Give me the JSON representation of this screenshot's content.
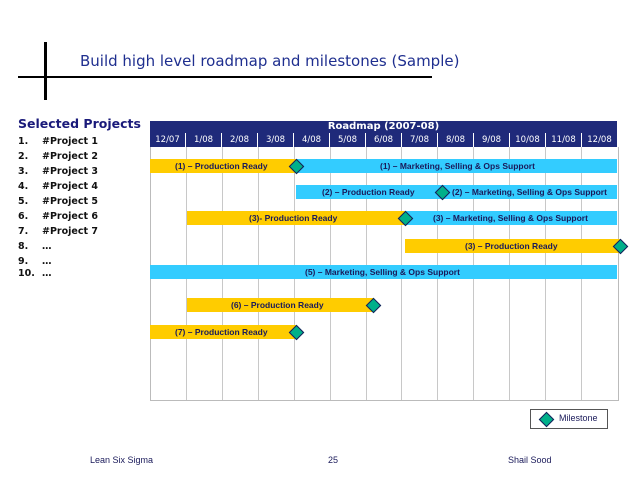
{
  "slide": {
    "title": "Build high level roadmap and milestones (Sample)"
  },
  "projects": {
    "heading": "Selected Projects",
    "items": [
      {
        "num": "1.",
        "name": "#Project 1"
      },
      {
        "num": "2.",
        "name": "#Project 2"
      },
      {
        "num": "3.",
        "name": "#Project 3"
      },
      {
        "num": "4.",
        "name": "#Project 4"
      },
      {
        "num": "5.",
        "name": "#Project 5"
      },
      {
        "num": "6.",
        "name": "#Project 6"
      },
      {
        "num": "7.",
        "name": "#Project 7"
      },
      {
        "num": "8.",
        "name": "…"
      },
      {
        "num": "9.",
        "name": "…"
      },
      {
        "num": "10.",
        "name": "…"
      }
    ]
  },
  "roadmap": {
    "header": "Roadmap (2007-08)",
    "months": [
      "12/07",
      "1/08",
      "2/08",
      "3/08",
      "4/08",
      "5/08",
      "6/08",
      "7/08",
      "8/08",
      "9/08",
      "10/08",
      "11/08",
      "12/08"
    ],
    "bars": [
      {
        "label": "(1) – Production Ready",
        "color": "#ffcc00"
      },
      {
        "label": "(1) – Marketing, Selling & Ops Support",
        "color": "#33ccff"
      },
      {
        "label": "(2) – Production Ready",
        "color": "#ffcc00"
      },
      {
        "label": "(2) – Marketing, Selling & Ops Support",
        "color": "#33ccff"
      },
      {
        "label": "(3)- Production Ready",
        "color": "#ffcc00"
      },
      {
        "label": "(3) – Marketing, Selling & Ops Support",
        "color": "#33ccff"
      },
      {
        "label": "(3) – Production Ready",
        "color": "#ffcc00"
      },
      {
        "label": "(5) – Marketing, Selling & Ops Support",
        "color": "#33ccff"
      },
      {
        "label": "(6) – Production Ready",
        "color": "#ffcc00"
      },
      {
        "label": "(7) – Production Ready",
        "color": "#ffcc00"
      }
    ],
    "legend": {
      "label": "Milestone",
      "icon": "milestone-diamond-icon",
      "color": "#00b08a"
    }
  },
  "footer": {
    "left": "Lean Six Sigma",
    "page": "25",
    "right": "Shail Sood"
  }
}
